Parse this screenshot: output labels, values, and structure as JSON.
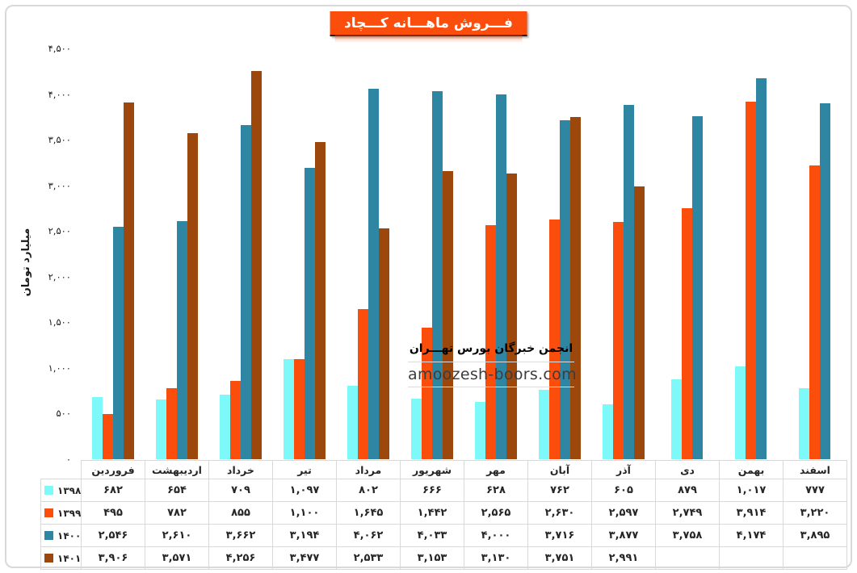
{
  "title": "فـــروش ماهـــانه کـــچاد",
  "watermark": {
    "line1": "انجمن خبرگان بورس تهـــران",
    "line2": "amoozesh-boors.com"
  },
  "chart_data": {
    "type": "bar",
    "title": "فـــروش ماهـــانه کـــچاد",
    "xlabel": "",
    "ylabel": "میلیارد تومان",
    "ylim": [
      0,
      4500
    ],
    "yticks": [
      0,
      500,
      1000,
      1500,
      2000,
      2500,
      3000,
      3500,
      4000,
      4500
    ],
    "grid": false,
    "legend_position": "table-left",
    "digit_style": "persian",
    "categories": [
      "فروردین",
      "اردیبهشت",
      "خرداد",
      "تیر",
      "مرداد",
      "شهریور",
      "مهر",
      "آبان",
      "آذر",
      "دی",
      "بهمن",
      "اسفند"
    ],
    "series": [
      {
        "name": "۱۳۹۸",
        "year": 1398,
        "color": "#7EF9F9",
        "values": [
          682,
          654,
          709,
          1097,
          802,
          666,
          628,
          762,
          605,
          879,
          1017,
          777
        ]
      },
      {
        "name": "۱۳۹۹",
        "year": 1399,
        "color": "#FB4E0D",
        "values": [
          495,
          782,
          855,
          1100,
          1645,
          1442,
          2565,
          2630,
          2597,
          2749,
          3914,
          3220
        ]
      },
      {
        "name": "۱۴۰۰",
        "year": 1400,
        "color": "#2E86A3",
        "values": [
          2546,
          2610,
          3662,
          3194,
          4062,
          4033,
          4000,
          3716,
          3877,
          3758,
          4174,
          3895
        ]
      },
      {
        "name": "۱۴۰۱",
        "year": 1401,
        "color": "#9C470C",
        "values": [
          3906,
          3571,
          4256,
          3477,
          2533,
          3153,
          3130,
          3751,
          2991,
          null,
          null,
          null
        ]
      }
    ]
  },
  "colors": {
    "title_bg": "#FB4E0D",
    "frame_border": "#D9D9D9",
    "table_border": "#D9D9D9"
  }
}
